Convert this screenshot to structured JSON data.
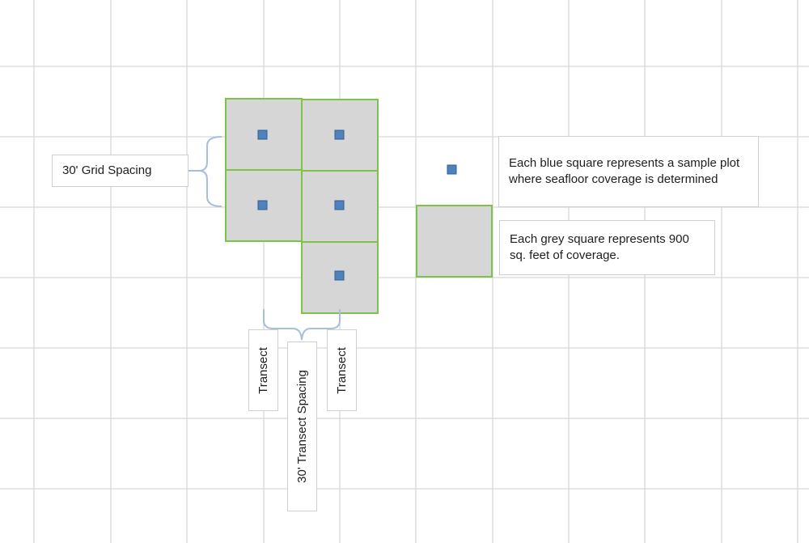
{
  "labels": {
    "grid_spacing": "30' Grid Spacing",
    "transect_left": "Transect",
    "transect_spacing": "30' Transect Spacing",
    "transect_right": "Transect"
  },
  "legend": {
    "blue_square_text": "Each blue square represents a sample plot where seafloor coverage is determined",
    "grey_square_text": "Each grey square represents 900 sq. feet of coverage."
  },
  "colors": {
    "grid_line": "#d7d7d7",
    "cell_fill": "#d6d6d6",
    "cell_border": "#7ec247",
    "sample_plot": "#4f81bd",
    "brace": "#a7bedc"
  }
}
